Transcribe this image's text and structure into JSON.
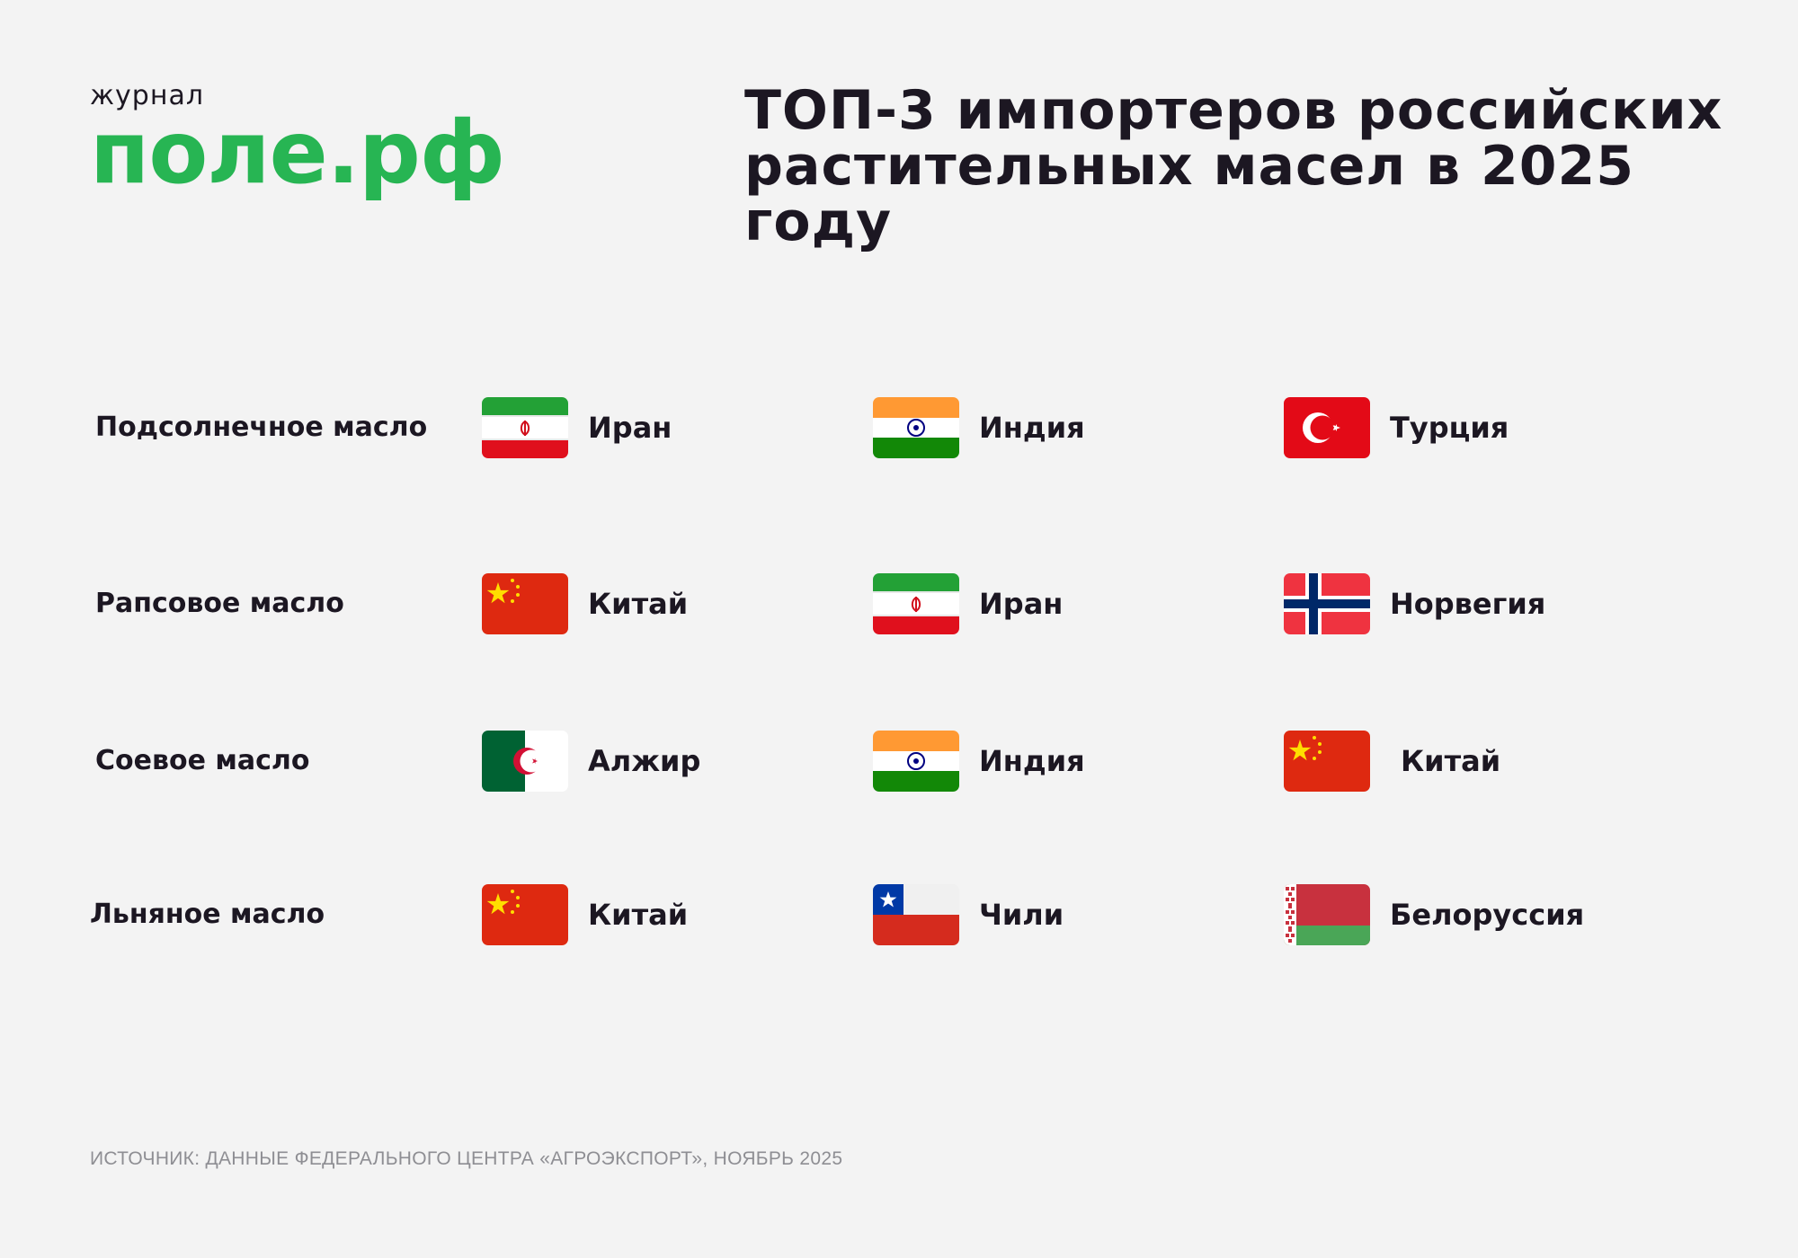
{
  "logo": {
    "small": "журнал",
    "big": "поле.рф"
  },
  "title": "ТОП-3 импортеров российских растительных масел в 2025 году",
  "rows": [
    {
      "oil": "Подсолнечное масло",
      "countries": [
        {
          "name": "Иран",
          "flag": "iran-flag"
        },
        {
          "name": "Индия",
          "flag": "india-flag"
        },
        {
          "name": "Турция",
          "flag": "turkey-flag"
        }
      ]
    },
    {
      "oil": "Рапсовое масло",
      "countries": [
        {
          "name": "Китай",
          "flag": "china-flag"
        },
        {
          "name": "Иран",
          "flag": "iran-flag"
        },
        {
          "name": "Норвегия",
          "flag": "norway-flag"
        }
      ]
    },
    {
      "oil": "Соевое масло",
      "countries": [
        {
          "name": "Алжир",
          "flag": "algeria-flag"
        },
        {
          "name": "Индия",
          "flag": "india-flag"
        },
        {
          "name": "Китай",
          "flag": "china-flag"
        }
      ]
    },
    {
      "oil": "Льняное масло",
      "countries": [
        {
          "name": "Китай",
          "flag": "china-flag"
        },
        {
          "name": "Чили",
          "flag": "chile-flag"
        },
        {
          "name": "Белоруссия",
          "flag": "belarus-flag"
        }
      ]
    }
  ],
  "source": "ИСТОЧНИК: ДАННЫЕ ФЕДЕРАЛЬНОГО ЦЕНТРА «АГРОЭКСПОРТ», НОЯБРЬ 2025",
  "colors": {
    "brand": "#27b553",
    "text": "#1c1722",
    "background": "#f3f3f3",
    "muted": "#8e8e93"
  }
}
